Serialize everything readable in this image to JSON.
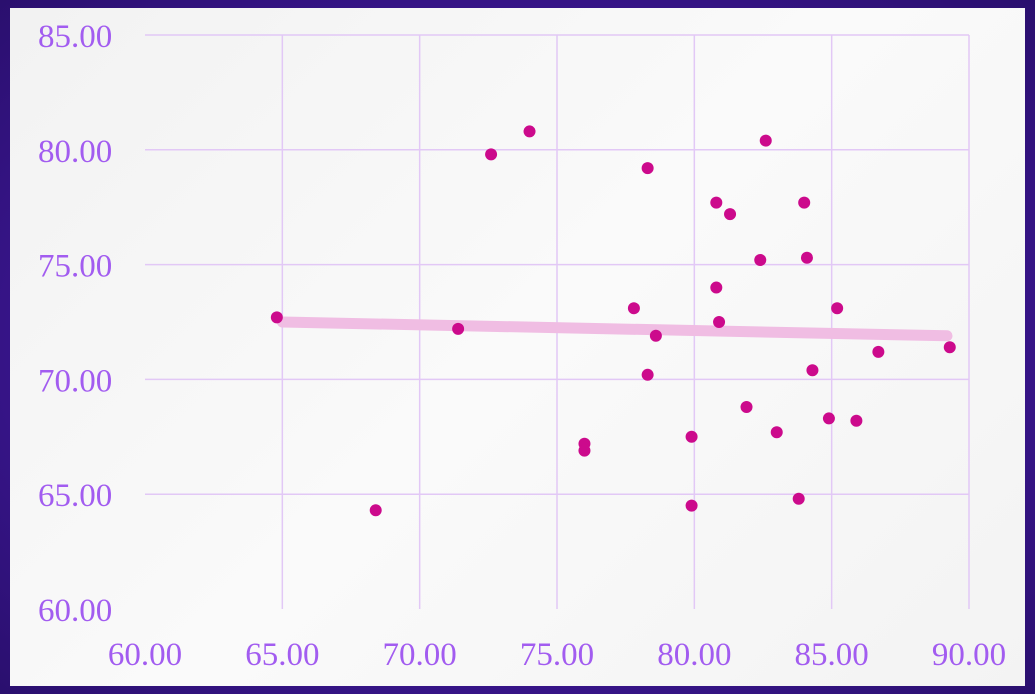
{
  "chart_data": {
    "type": "scatter",
    "title": "",
    "xlabel": "",
    "ylabel": "",
    "xlim": [
      60,
      90
    ],
    "ylim": [
      60,
      85
    ],
    "x_ticks": [
      "60.00",
      "65.00",
      "70.00",
      "75.00",
      "80.00",
      "85.00",
      "90.00"
    ],
    "y_ticks": [
      "60.00",
      "65.00",
      "70.00",
      "75.00",
      "80.00",
      "85.00"
    ],
    "grid": true,
    "trendline": {
      "x": [
        65.0,
        89.2
      ],
      "y": [
        72.5,
        71.9
      ]
    },
    "points": [
      {
        "x": 64.8,
        "y": 72.7
      },
      {
        "x": 68.4,
        "y": 64.3
      },
      {
        "x": 71.4,
        "y": 72.2
      },
      {
        "x": 72.6,
        "y": 79.8
      },
      {
        "x": 74.0,
        "y": 80.8
      },
      {
        "x": 76.0,
        "y": 67.2
      },
      {
        "x": 76.0,
        "y": 66.9
      },
      {
        "x": 77.8,
        "y": 73.1
      },
      {
        "x": 78.3,
        "y": 79.2
      },
      {
        "x": 78.3,
        "y": 70.2
      },
      {
        "x": 78.6,
        "y": 71.9
      },
      {
        "x": 79.9,
        "y": 67.5
      },
      {
        "x": 79.9,
        "y": 64.5
      },
      {
        "x": 80.8,
        "y": 77.7
      },
      {
        "x": 80.8,
        "y": 74.0
      },
      {
        "x": 80.9,
        "y": 72.5
      },
      {
        "x": 81.3,
        "y": 77.2
      },
      {
        "x": 81.9,
        "y": 68.8
      },
      {
        "x": 82.4,
        "y": 75.2
      },
      {
        "x": 82.6,
        "y": 80.4
      },
      {
        "x": 83.0,
        "y": 67.7
      },
      {
        "x": 83.8,
        "y": 64.8
      },
      {
        "x": 84.0,
        "y": 77.7
      },
      {
        "x": 84.1,
        "y": 75.3
      },
      {
        "x": 84.3,
        "y": 70.4
      },
      {
        "x": 84.9,
        "y": 68.3
      },
      {
        "x": 85.2,
        "y": 73.1
      },
      {
        "x": 85.9,
        "y": 68.2
      },
      {
        "x": 86.7,
        "y": 71.2
      },
      {
        "x": 89.3,
        "y": 71.4
      }
    ],
    "colors": {
      "point": "#cc0a8c",
      "trendline": "#f0bde3",
      "grid": "#e2c8f6",
      "tick_label": "#a25cf0",
      "background": "#f5f5f5",
      "frame": "#3a168f"
    }
  }
}
